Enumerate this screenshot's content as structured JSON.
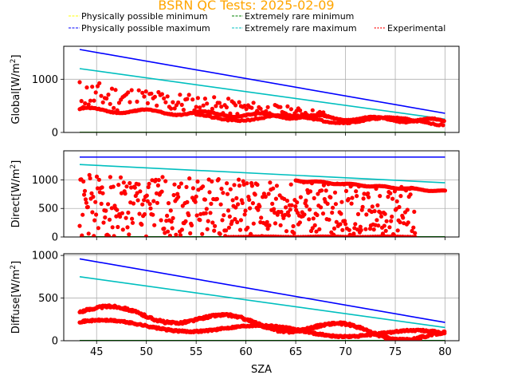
{
  "chart_data": {
    "type": "scatter",
    "title": "BSRN QC Tests: 2025-02-09",
    "xlabel": "SZA",
    "xlim": [
      41.7,
      81.4
    ],
    "xticks": [
      45,
      50,
      55,
      60,
      65,
      70,
      75,
      80
    ],
    "grid": true,
    "legend_placement": "top",
    "legend": [
      {
        "label": "Physically possible minimum",
        "color": "#ffff00",
        "style": "dashed"
      },
      {
        "label": "Physically possible maximum",
        "color": "#0000ff",
        "style": "dashed"
      },
      {
        "label": "Extremely rare minimum",
        "color": "#008000",
        "style": "dashed"
      },
      {
        "label": "Extremely rare maximum",
        "color": "#00bfbf",
        "style": "dashed"
      },
      {
        "label": "Experimental",
        "color": "#ff0000",
        "style": "dotted"
      }
    ],
    "colors": {
      "pp_min": "#e8e800",
      "pp_max": "#0000ff",
      "er_min": "#008000",
      "er_max": "#00bfbf",
      "obs": "#ff0000"
    },
    "panels": [
      {
        "ylabel_main": "Global",
        "ylabel_unit": "[W/m",
        "ylabel_exp": "2",
        "ylabel_close": "]",
        "ylim": [
          0,
          1620
        ],
        "yticks": [
          0,
          1000
        ],
        "lines": {
          "pp_max": {
            "x": [
              43.3,
              80.0
            ],
            "y": [
              1560,
              360
            ]
          },
          "er_max": {
            "x": [
              43.3,
              80.0
            ],
            "y": [
              1200,
              250
            ]
          },
          "er_min": {
            "x": [
              43.3,
              80.0
            ],
            "y": [
              2,
              2
            ]
          },
          "pp_min": {
            "x": [
              43.3,
              80.0
            ],
            "y": [
              0,
              0
            ]
          }
        },
        "series": [
          {
            "kind": "band",
            "x0": 43.3,
            "x1": 68.0,
            "step": 0.18,
            "low0": 420,
            "low1": 270,
            "high0": 1000,
            "high1": 400,
            "seed": 11
          },
          {
            "kind": "wave",
            "x0": 43.3,
            "x1": 80.0,
            "step": 0.12,
            "base0": 430,
            "base1": 210,
            "amp": 40,
            "freq": 1.1,
            "seed": 3
          },
          {
            "kind": "wave",
            "x0": 55.0,
            "x1": 80.0,
            "step": 0.2,
            "base0": 300,
            "base1": 200,
            "amp": 60,
            "freq": 0.6,
            "seed": 7
          }
        ]
      },
      {
        "ylabel_main": "Direct",
        "ylabel_unit": "[W/m",
        "ylabel_exp": "2",
        "ylabel_close": "]",
        "ylim": [
          0,
          1510
        ],
        "yticks": [
          0,
          500,
          1000
        ],
        "lines": {
          "pp_max": {
            "x": [
              43.3,
              80.0
            ],
            "y": [
              1400,
              1400
            ]
          },
          "er_max": {
            "x": [
              43.3,
              80.0
            ],
            "y": [
              1270,
              950
            ]
          },
          "er_min": {
            "x": [
              43.3,
              80.0
            ],
            "y": [
              2,
              2
            ]
          },
          "pp_min": {
            "x": [
              43.3,
              80.0
            ],
            "y": [
              0,
              0
            ]
          }
        },
        "series": [
          {
            "kind": "scatter",
            "x0": 43.3,
            "x1": 77.0,
            "step": 0.075,
            "low0": 0,
            "low1": 0,
            "high0": 1100,
            "high1": 900,
            "seed": 21
          },
          {
            "kind": "wave",
            "x0": 65.0,
            "x1": 80.0,
            "step": 0.1,
            "base0": 990,
            "base1": 800,
            "amp": 12,
            "freq": 2.0,
            "seed": 5
          },
          {
            "kind": "wave",
            "x0": 58.0,
            "x1": 77.0,
            "step": 0.25,
            "base0": 5,
            "base1": 5,
            "amp": 5,
            "freq": 1.0,
            "seed": 9
          }
        ]
      },
      {
        "ylabel_main": "Diffuse",
        "ylabel_unit": "[W/m",
        "ylabel_exp": "2",
        "ylabel_close": "]",
        "ylim": [
          0,
          1020
        ],
        "yticks": [
          0,
          500,
          1000
        ],
        "lines": {
          "pp_max": {
            "x": [
              43.3,
              80.0
            ],
            "y": [
              960,
              215
            ]
          },
          "er_max": {
            "x": [
              43.3,
              80.0
            ],
            "y": [
              750,
              155
            ]
          },
          "er_min": {
            "x": [
              43.3,
              80.0
            ],
            "y": [
              2,
              2
            ]
          },
          "pp_min": {
            "x": [
              43.3,
              80.0
            ],
            "y": [
              0,
              0
            ]
          }
        },
        "series": [
          {
            "kind": "wave",
            "x0": 43.3,
            "x1": 80.0,
            "step": 0.08,
            "base0": 360,
            "base1": 40,
            "amp": 70,
            "freq": 0.55,
            "seed": 1
          },
          {
            "kind": "wave",
            "x0": 43.3,
            "x1": 80.0,
            "step": 0.08,
            "base0": 200,
            "base1": 60,
            "amp": 50,
            "freq": 0.4,
            "seed": 2
          }
        ]
      }
    ]
  }
}
